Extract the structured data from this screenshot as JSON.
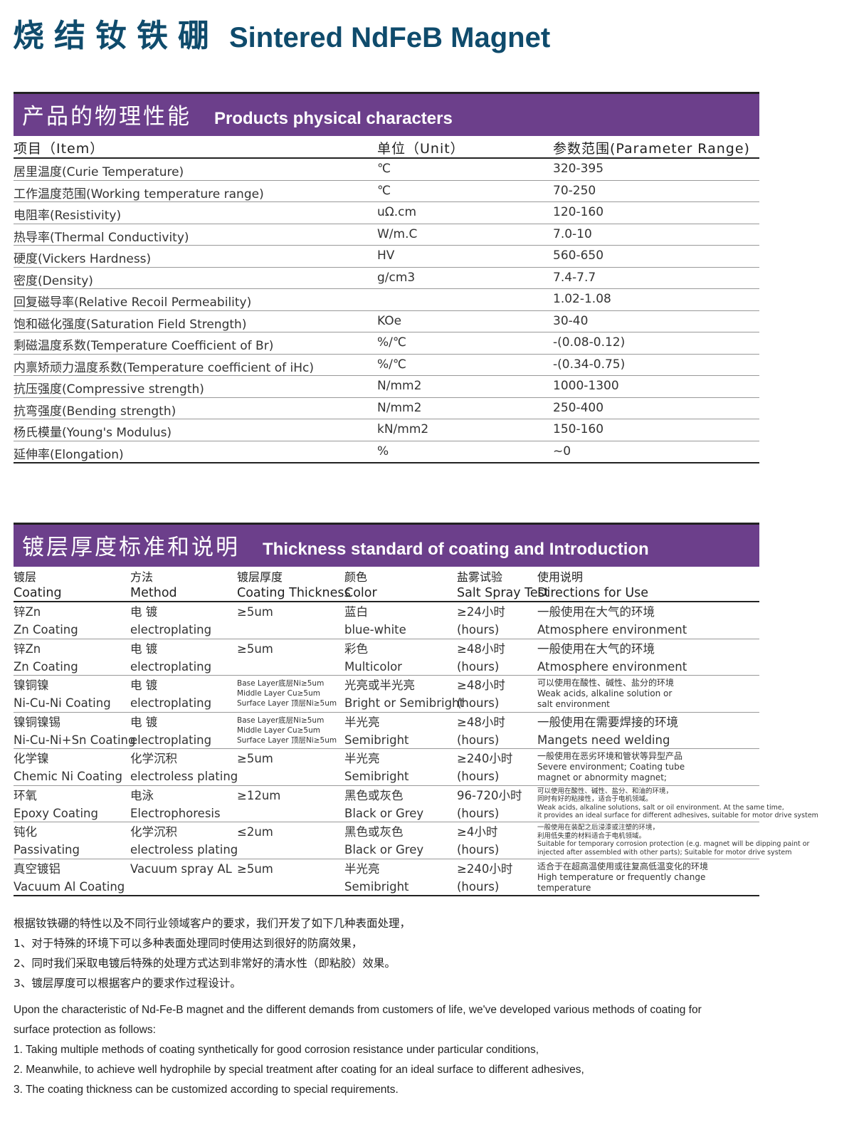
{
  "title": {
    "cn": "烧结钕铁硼",
    "en": "Sintered NdFeB Magnet"
  },
  "colors": {
    "band": "#6c3f8b",
    "title": "#0f4b6c"
  },
  "physical": {
    "header_cn": "产品的物理性能",
    "header_en": "Products physical characters",
    "columns": [
      "项目（Item）",
      "单位（Unit）",
      "参数范围(Parameter  Range)"
    ],
    "rows": [
      [
        "居里温度(Curie Temperature)",
        "℃",
        "320-395"
      ],
      [
        "工作温度范围(Working temperature range)",
        "℃",
        "70-250"
      ],
      [
        "电阻率(Resistivity)",
        "uΩ.cm",
        "120-160"
      ],
      [
        "热导率(Thermal Conductivity)",
        "W/m.C",
        "7.0-10"
      ],
      [
        "硬度(Vickers Hardness)",
        "HV",
        "560-650"
      ],
      [
        "密度(Density)",
        "g/cm3",
        "7.4-7.7"
      ],
      [
        "回复磁导率(Relative Recoil  Permeability)",
        "",
        "1.02-1.08"
      ],
      [
        "饱和磁化强度(Saturation Field Strength)",
        "KOe",
        "30-40"
      ],
      [
        "剩磁温度系数(Temperature Coefficient of  Br)",
        "%/℃",
        "-(0.08-0.12)"
      ],
      [
        "内禀矫顽力温度系数(Temperature coefficient of iHc)",
        "%/℃",
        "-(0.34-0.75)"
      ],
      [
        "抗压强度(Compressive strength)",
        "N/mm2",
        "1000-1300"
      ],
      [
        "抗弯强度(Bending strength)",
        "N/mm2",
        "250-400"
      ],
      [
        "杨氏模量(Young's Modulus)",
        "kN/mm2",
        "150-160"
      ],
      [
        "延伸率(Elongation)",
        "%",
        "~0"
      ]
    ]
  },
  "coating": {
    "header_cn": "镀层厚度标准和说明",
    "header_en": "Thickness standard of coating and Introduction",
    "columns": [
      [
        "镀层",
        "Coating"
      ],
      [
        "方法",
        "Method"
      ],
      [
        "镀层厚度",
        "Coating Thickness"
      ],
      [
        "颜色",
        "Color"
      ],
      [
        "盐雾试验",
        "Salt Spray Test"
      ],
      [
        "使用说明",
        "Directions for Use"
      ]
    ],
    "rows": [
      [
        [
          "锌Zn",
          "Zn Coating"
        ],
        [
          "电 镀",
          "electroplating"
        ],
        [
          "≥5um"
        ],
        [
          "蓝白",
          "blue-white"
        ],
        [
          "≥24小时",
          "(hours)"
        ],
        [
          "一般使用在大气的环境",
          "Atmosphere environment"
        ]
      ],
      [
        [
          "锌Zn",
          "Zn Coating"
        ],
        [
          "电 镀",
          "electroplating"
        ],
        [
          "≥5um"
        ],
        [
          "彩色",
          "Multicolor"
        ],
        [
          "≥48小时",
          "(hours)"
        ],
        [
          "一般使用在大气的环境",
          "Atmosphere environment"
        ]
      ],
      [
        [
          "镍铜镍",
          "Ni-Cu-Ni Coating"
        ],
        [
          "电 镀",
          "electroplating"
        ],
        [
          "Base Layer底层Ni≥5um",
          "Middle Layer Cu≥5um",
          "Surface Layer 顶层Ni≥5um"
        ],
        [
          "光亮或半光亮",
          "Bright or Semibright"
        ],
        [
          "≥48小时",
          "(hours)"
        ],
        [
          "可以使用在酸性、碱性、盐分的环境",
          "Weak acids, alkaline solution or",
          "salt environment"
        ]
      ],
      [
        [
          "镍铜镍锡",
          "Ni-Cu-Ni+Sn Coating"
        ],
        [
          "电 镀",
          "electroplating"
        ],
        [
          "Base Layer底层Ni≥5um",
          "Middle Layer Cu≥5um",
          "Surface Layer 顶层Ni≥5um"
        ],
        [
          "半光亮",
          "Semibright"
        ],
        [
          "≥48小时",
          "(hours)"
        ],
        [
          "一般使用在需要焊接的环境",
          "Mangets  need welding"
        ]
      ],
      [
        [
          "化学镍",
          "Chemic Ni Coating"
        ],
        [
          "化学沉积",
          "electroless plating"
        ],
        [
          "≥5um"
        ],
        [
          "半光亮",
          "Semibright"
        ],
        [
          "≥240小时",
          "(hours)"
        ],
        [
          "一般使用在恶劣环境和管状等异型产品",
          "Severe environment; Coating tube",
          "magnet or abnormity magnet;"
        ]
      ],
      [
        [
          "环氧",
          "Epoxy Coating"
        ],
        [
          "电泳",
          "Electrophoresis"
        ],
        [
          "≥12um"
        ],
        [
          "黑色或灰色",
          "Black or Grey"
        ],
        [
          "96-720小时",
          "(hours)"
        ],
        [
          "可以使用在酸性、碱性、盐分、和油的环境，",
          "同时有好的粘接性，适合于电机领域。",
          "Weak acids, alkaline solutions, salt or oil environment. At the same time,",
          "it provides an ideal surface for different adhesives, suitable for motor drive system"
        ]
      ],
      [
        [
          "钝化",
          "Passivating"
        ],
        [
          "化学沉积",
          "electroless plating"
        ],
        [
          "≤2um"
        ],
        [
          "黑色或灰色",
          "Black or Grey"
        ],
        [
          "≥4小时",
          "(hours)"
        ],
        [
          "一般使用在装配之后浸漆或注塑的环境，",
          "利用低失重的材料适合于电机领域。",
          "Suitable for temporary corrosion protection (e.g. magnet will be dipping paint or",
          "injected after assembled with other parts); Suitable for motor drive system"
        ]
      ],
      [
        [
          "真空镀铝",
          "Vacuum Al Coating"
        ],
        [
          "",
          "Vacuum spray AL"
        ],
        [
          "≥5um"
        ],
        [
          "半光亮",
          "Semibright"
        ],
        [
          "≥240小时",
          "(hours)"
        ],
        [
          "适合于在超高温使用或往复高低温变化的环境",
          "High temperature or frequently change",
          "temperature"
        ]
      ]
    ]
  },
  "notes_cn": [
    "根据钕铁硼的特性以及不同行业领域客户的要求，我们开发了如下几种表面处理，",
    "1、对于特殊的环境下可以多种表面处理同时使用达到很好的防腐效果，",
    "2、同时我们采取电镀后特殊的处理方式达到非常好的清水性（即粘胶）效果。",
    "3、镀层厚度可以根据客户的要求作过程设计。"
  ],
  "notes_en": [
    "Upon the characteristic of Nd-Fe-B magnet and the different demands from customers of life, we've developed various methods of coating for",
    "surface protection as follows:",
    "1. Taking multiple methods of coating synthetically for good corrosion resistance under particular conditions,",
    "2. Meanwhile, to achieve well hydrophile by special treatment after coating for an ideal surface to different adhesives,",
    "3. The coating thickness can be customized according to special requirements."
  ]
}
